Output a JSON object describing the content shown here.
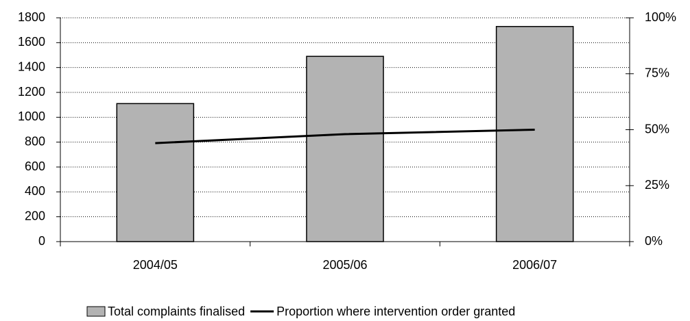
{
  "chart_data": {
    "type": "bar",
    "categories": [
      "2004/05",
      "2005/06",
      "2006/07"
    ],
    "series": [
      {
        "name": "Total complaints finalised",
        "color": "#b3b3b3",
        "values": [
          1110,
          1490,
          1730
        ]
      },
      {
        "name": "Proportion where intervention order granted",
        "color": "#000000",
        "type": "line",
        "axis": "y2",
        "values": [
          44,
          48,
          50
        ]
      }
    ],
    "ylim": [
      0,
      1800
    ],
    "yticks": [
      0,
      200,
      400,
      600,
      800,
      1000,
      1200,
      1400,
      1600,
      1800
    ],
    "y2lim": [
      0,
      100
    ],
    "y2ticks": [
      {
        "value": 0,
        "label": "0%"
      },
      {
        "value": 25,
        "label": "25%"
      },
      {
        "value": 50,
        "label": "50%"
      },
      {
        "value": 75,
        "label": "75%"
      },
      {
        "value": 100,
        "label": "100%"
      }
    ],
    "grid": true,
    "legend": "bottom"
  }
}
